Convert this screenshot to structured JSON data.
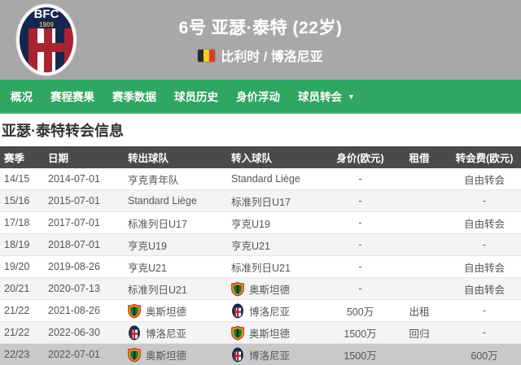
{
  "colors": {
    "header_bg": "#a8a8a8",
    "nav_green": "#2fa661",
    "table_header_bg": "#4a4a4a",
    "row_alt": "#f4f4f4",
    "row_highlight": "#c9c9c9",
    "flag_black": "#2b2b2b",
    "flag_yellow": "#f7d117",
    "flag_red": "#e0392d"
  },
  "header": {
    "club_logo": "bologna-crest",
    "logo_text": "BFC",
    "logo_year": "1909",
    "title": "6号 亚瑟·泰特 (22岁)",
    "flag_icon": "belgium-flag",
    "subtitle": "比利时 / 博洛尼亚"
  },
  "nav": {
    "items": [
      {
        "label": "概况",
        "dropdown": false
      },
      {
        "label": "赛程赛果",
        "dropdown": false
      },
      {
        "label": "赛季数据",
        "dropdown": false
      },
      {
        "label": "球员历史",
        "dropdown": false
      },
      {
        "label": "身价浮动",
        "dropdown": false
      },
      {
        "label": "球员转会",
        "dropdown": true
      }
    ],
    "caret_icon": "caret-down-icon"
  },
  "section": {
    "title": "亚瑟·泰特转会信息"
  },
  "table": {
    "columns": [
      "赛季",
      "日期",
      "转出球队",
      "转入球队",
      "身价(欧元)",
      "租借",
      "转会费(欧元)"
    ],
    "rows": [
      {
        "season": "14/15",
        "date": "2014-07-01",
        "out": {
          "name": "亨克青年队",
          "badge": null
        },
        "in": {
          "name": "Standard Liège",
          "badge": null
        },
        "value": "-",
        "loan": "",
        "fee": "自由转会",
        "highlight": false
      },
      {
        "season": "15/16",
        "date": "2015-07-01",
        "out": {
          "name": "Standard Liège",
          "badge": null
        },
        "in": {
          "name": "标准列日U17",
          "badge": null
        },
        "value": "-",
        "loan": "",
        "fee": "-",
        "highlight": false
      },
      {
        "season": "17/18",
        "date": "2017-07-01",
        "out": {
          "name": "标准列日U17",
          "badge": null
        },
        "in": {
          "name": "亨克U19",
          "badge": null
        },
        "value": "-",
        "loan": "",
        "fee": "自由转会",
        "highlight": false
      },
      {
        "season": "18/19",
        "date": "2018-07-01",
        "out": {
          "name": "亨克U19",
          "badge": null
        },
        "in": {
          "name": "亨克U21",
          "badge": null
        },
        "value": "-",
        "loan": "",
        "fee": "-",
        "highlight": false
      },
      {
        "season": "19/20",
        "date": "2019-08-26",
        "out": {
          "name": "亨克U21",
          "badge": null
        },
        "in": {
          "name": "标准列日U21",
          "badge": null
        },
        "value": "-",
        "loan": "",
        "fee": "自由转会",
        "highlight": false
      },
      {
        "season": "20/21",
        "date": "2020-07-13",
        "out": {
          "name": "标准列日U21",
          "badge": null
        },
        "in": {
          "name": "奥斯坦德",
          "badge": "oostende-crest"
        },
        "value": "-",
        "loan": "",
        "fee": "自由转会",
        "highlight": false
      },
      {
        "season": "21/22",
        "date": "2021-08-26",
        "out": {
          "name": "奥斯坦德",
          "badge": "oostende-crest"
        },
        "in": {
          "name": "博洛尼亚",
          "badge": "bologna-crest"
        },
        "value": "500万",
        "loan": "出租",
        "fee": "-",
        "highlight": false
      },
      {
        "season": "21/22",
        "date": "2022-06-30",
        "out": {
          "name": "博洛尼亚",
          "badge": "bologna-crest"
        },
        "in": {
          "name": "奥斯坦德",
          "badge": "oostende-crest"
        },
        "value": "1500万",
        "loan": "回归",
        "fee": "-",
        "highlight": false
      },
      {
        "season": "22/23",
        "date": "2022-07-01",
        "out": {
          "name": "奥斯坦德",
          "badge": "oostende-crest"
        },
        "in": {
          "name": "博洛尼亚",
          "badge": "bologna-crest"
        },
        "value": "1500万",
        "loan": "",
        "fee": "600万",
        "highlight": true
      }
    ]
  }
}
